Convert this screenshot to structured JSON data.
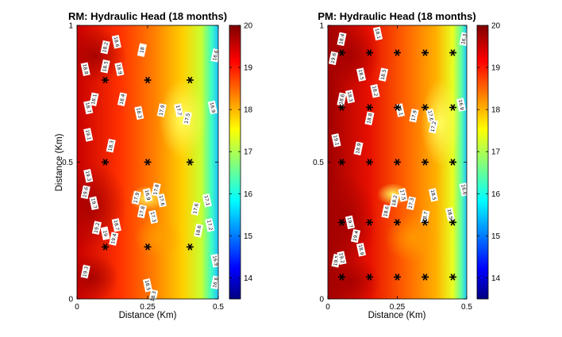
{
  "chart_data": [
    {
      "type": "heatmap",
      "title": "RM: Hydraulic Head (18 months)",
      "xlabel": "Distance (Km)",
      "ylabel": "Distance (Km)",
      "xlim": [
        0,
        0.5
      ],
      "ylim": [
        0,
        1
      ],
      "xticks": [
        "0",
        "0.25",
        "0.5"
      ],
      "yticks": [
        "0",
        "0.5",
        "1"
      ],
      "colorbar": {
        "range": [
          13.5,
          20
        ],
        "ticks": [
          "14",
          "15",
          "16",
          "17",
          "18",
          "19",
          "20"
        ],
        "colormap": "jet"
      },
      "wells": [
        {
          "x": 0.1,
          "y": 0.8
        },
        {
          "x": 0.25,
          "y": 0.8
        },
        {
          "x": 0.4,
          "y": 0.8
        },
        {
          "x": 0.1,
          "y": 0.5
        },
        {
          "x": 0.25,
          "y": 0.5
        },
        {
          "x": 0.4,
          "y": 0.5
        },
        {
          "x": 0.1,
          "y": 0.19
        },
        {
          "x": 0.25,
          "y": 0.19
        },
        {
          "x": 0.4,
          "y": 0.19
        }
      ],
      "contour_labels": [
        {
          "x": 0.1,
          "y": 0.92,
          "text": "18.2"
        },
        {
          "x": 0.14,
          "y": 0.94,
          "text": "18.6"
        },
        {
          "x": 0.23,
          "y": 0.91,
          "text": "18"
        },
        {
          "x": 0.03,
          "y": 0.84,
          "text": "18.8"
        },
        {
          "x": 0.1,
          "y": 0.85,
          "text": "18.5"
        },
        {
          "x": 0.15,
          "y": 0.84,
          "text": "18.9"
        },
        {
          "x": 0.16,
          "y": 0.73,
          "text": "18.4"
        },
        {
          "x": 0.22,
          "y": 0.68,
          "text": "18.3"
        },
        {
          "x": 0.3,
          "y": 0.69,
          "text": "17.9"
        },
        {
          "x": 0.36,
          "y": 0.69,
          "text": "17.7"
        },
        {
          "x": 0.39,
          "y": 0.66,
          "text": "17.5"
        },
        {
          "x": 0.48,
          "y": 0.7,
          "text": "16.9"
        },
        {
          "x": 0.49,
          "y": 0.89,
          "text": "16.6"
        },
        {
          "x": 0.04,
          "y": 0.7,
          "text": "18.7"
        },
        {
          "x": 0.06,
          "y": 0.73,
          "text": "18.1"
        },
        {
          "x": 0.04,
          "y": 0.6,
          "text": "19.1"
        },
        {
          "x": 0.12,
          "y": 0.56,
          "text": "18.3"
        },
        {
          "x": 0.04,
          "y": 0.45,
          "text": "19.3"
        },
        {
          "x": 0.03,
          "y": 0.39,
          "text": "19.6"
        },
        {
          "x": 0.06,
          "y": 0.35,
          "text": "19.7"
        },
        {
          "x": 0.21,
          "y": 0.37,
          "text": "17.9"
        },
        {
          "x": 0.25,
          "y": 0.38,
          "text": "16.9"
        },
        {
          "x": 0.28,
          "y": 0.4,
          "text": "17.8"
        },
        {
          "x": 0.3,
          "y": 0.36,
          "text": "17.6"
        },
        {
          "x": 0.23,
          "y": 0.32,
          "text": "17.8"
        },
        {
          "x": 0.27,
          "y": 0.3,
          "text": "17.3"
        },
        {
          "x": 0.42,
          "y": 0.33,
          "text": "17.6"
        },
        {
          "x": 0.46,
          "y": 0.36,
          "text": "17.1"
        },
        {
          "x": 0.43,
          "y": 0.25,
          "text": "18.6"
        },
        {
          "x": 0.47,
          "y": 0.27,
          "text": "17.2"
        },
        {
          "x": 0.07,
          "y": 0.26,
          "text": "19.2"
        },
        {
          "x": 0.1,
          "y": 0.24,
          "text": "19"
        },
        {
          "x": 0.13,
          "y": 0.22,
          "text": "19.4"
        },
        {
          "x": 0.14,
          "y": 0.27,
          "text": "18.7"
        },
        {
          "x": 0.03,
          "y": 0.1,
          "text": "19.3"
        },
        {
          "x": 0.25,
          "y": 0.05,
          "text": "18.5"
        },
        {
          "x": 0.27,
          "y": 0.01,
          "text": "18.3"
        },
        {
          "x": 0.49,
          "y": 0.14,
          "text": "16.9"
        },
        {
          "x": 0.49,
          "y": 0.06,
          "text": "16.6"
        }
      ]
    },
    {
      "type": "heatmap",
      "title": "PM: Hydraulic Head (18 months)",
      "xlabel": "Distance (Km)",
      "ylabel": "",
      "xlim": [
        0,
        0.5
      ],
      "ylim": [
        0,
        1
      ],
      "xticks": [
        "0",
        "0.25",
        "0.5"
      ],
      "yticks": [
        "0",
        "0.5",
        "1"
      ],
      "colorbar": {
        "range": [
          13.5,
          20
        ],
        "ticks": [
          "14",
          "15",
          "16",
          "17",
          "18",
          "19",
          "20"
        ],
        "colormap": "jet"
      },
      "wells": [
        {
          "x": 0.05,
          "y": 0.9
        },
        {
          "x": 0.15,
          "y": 0.9
        },
        {
          "x": 0.25,
          "y": 0.9
        },
        {
          "x": 0.35,
          "y": 0.9
        },
        {
          "x": 0.45,
          "y": 0.9
        },
        {
          "x": 0.05,
          "y": 0.7
        },
        {
          "x": 0.15,
          "y": 0.7
        },
        {
          "x": 0.25,
          "y": 0.7
        },
        {
          "x": 0.35,
          "y": 0.7
        },
        {
          "x": 0.45,
          "y": 0.7
        },
        {
          "x": 0.05,
          "y": 0.5
        },
        {
          "x": 0.15,
          "y": 0.5
        },
        {
          "x": 0.25,
          "y": 0.5
        },
        {
          "x": 0.35,
          "y": 0.5
        },
        {
          "x": 0.45,
          "y": 0.5
        },
        {
          "x": 0.05,
          "y": 0.28
        },
        {
          "x": 0.15,
          "y": 0.28
        },
        {
          "x": 0.25,
          "y": 0.28
        },
        {
          "x": 0.35,
          "y": 0.28
        },
        {
          "x": 0.45,
          "y": 0.28
        },
        {
          "x": 0.05,
          "y": 0.08
        },
        {
          "x": 0.15,
          "y": 0.08
        },
        {
          "x": 0.25,
          "y": 0.08
        },
        {
          "x": 0.35,
          "y": 0.08
        },
        {
          "x": 0.45,
          "y": 0.08
        }
      ],
      "contour_labels": [
        {
          "x": 0.05,
          "y": 0.95,
          "text": "18.4"
        },
        {
          "x": 0.18,
          "y": 0.97,
          "text": "18.1"
        },
        {
          "x": 0.02,
          "y": 0.88,
          "text": "19.6"
        },
        {
          "x": 0.12,
          "y": 0.82,
          "text": "18.5"
        },
        {
          "x": 0.2,
          "y": 0.82,
          "text": "18.5"
        },
        {
          "x": 0.17,
          "y": 0.76,
          "text": "18.2"
        },
        {
          "x": 0.05,
          "y": 0.73,
          "text": "18.6"
        },
        {
          "x": 0.08,
          "y": 0.74,
          "text": "18.3"
        },
        {
          "x": 0.15,
          "y": 0.66,
          "text": "18.8"
        },
        {
          "x": 0.26,
          "y": 0.69,
          "text": "18.1"
        },
        {
          "x": 0.31,
          "y": 0.67,
          "text": "17.9"
        },
        {
          "x": 0.37,
          "y": 0.67,
          "text": "17.6"
        },
        {
          "x": 0.38,
          "y": 0.63,
          "text": "17.2"
        },
        {
          "x": 0.48,
          "y": 0.71,
          "text": "16.9"
        },
        {
          "x": 0.49,
          "y": 0.95,
          "text": "16.3"
        },
        {
          "x": 0.03,
          "y": 0.58,
          "text": "19.1"
        },
        {
          "x": 0.11,
          "y": 0.55,
          "text": "18.9"
        },
        {
          "x": 0.49,
          "y": 0.4,
          "text": "16.6"
        },
        {
          "x": 0.24,
          "y": 0.36,
          "text": "18.2"
        },
        {
          "x": 0.27,
          "y": 0.38,
          "text": "17.5"
        },
        {
          "x": 0.3,
          "y": 0.35,
          "text": "17.3"
        },
        {
          "x": 0.38,
          "y": 0.38,
          "text": "18.5"
        },
        {
          "x": 0.35,
          "y": 0.3,
          "text": "18.7"
        },
        {
          "x": 0.44,
          "y": 0.31,
          "text": "18.5"
        },
        {
          "x": 0.21,
          "y": 0.32,
          "text": "18.6"
        },
        {
          "x": 0.08,
          "y": 0.28,
          "text": "19.7"
        },
        {
          "x": 0.1,
          "y": 0.23,
          "text": "19.4"
        },
        {
          "x": 0.12,
          "y": 0.18,
          "text": "18.9"
        },
        {
          "x": 0.03,
          "y": 0.14,
          "text": "19.5"
        },
        {
          "x": 0.05,
          "y": 0.15,
          "text": "19.2"
        }
      ]
    }
  ]
}
